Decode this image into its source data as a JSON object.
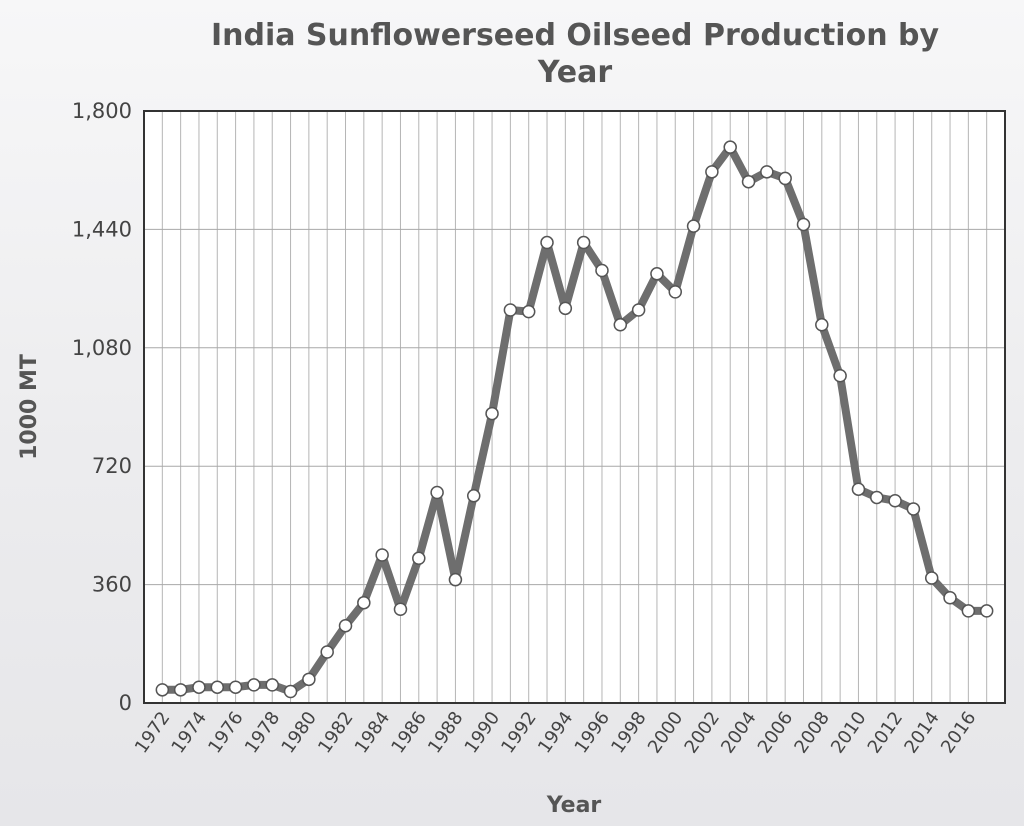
{
  "chart_data": {
    "type": "line",
    "title": "India Sunflowerseed Oilseed Production by Year",
    "title_lines": [
      "India Sunflowerseed Oilseed Production by",
      "Year"
    ],
    "xlabel": "Year",
    "ylabel": "1000 MT",
    "ylim": [
      0,
      1800
    ],
    "yticks": [
      0,
      360,
      720,
      1080,
      1440,
      1800
    ],
    "ytick_labels": [
      "0",
      "360",
      "720",
      "1,080",
      "1,440",
      "1,800"
    ],
    "xlim": [
      1971,
      2018
    ],
    "xtick_labels": [
      "1972",
      "1974",
      "1976",
      "1978",
      "1980",
      "1982",
      "1984",
      "1986",
      "1988",
      "1990",
      "1992",
      "1994",
      "1996",
      "1998",
      "2000",
      "2002",
      "2004",
      "2006",
      "2008",
      "2010",
      "2012",
      "2014",
      "2016"
    ],
    "grid": true,
    "line_color": "#6e6e6e",
    "marker_fill": "#ffffff",
    "x": [
      1972,
      1973,
      1974,
      1975,
      1976,
      1977,
      1978,
      1979,
      1980,
      1981,
      1982,
      1983,
      1984,
      1985,
      1986,
      1987,
      1988,
      1989,
      1990,
      1991,
      1992,
      1993,
      1994,
      1995,
      1996,
      1997,
      1998,
      1999,
      2000,
      2001,
      2002,
      2003,
      2004,
      2005,
      2006,
      2007,
      2008,
      2009,
      2010,
      2011,
      2012,
      2013,
      2014,
      2015,
      2016,
      2017
    ],
    "values": [
      40,
      40,
      48,
      48,
      48,
      55,
      55,
      35,
      72,
      155,
      235,
      305,
      450,
      285,
      440,
      640,
      375,
      630,
      880,
      1195,
      1190,
      1400,
      1200,
      1400,
      1315,
      1150,
      1195,
      1305,
      1250,
      1450,
      1615,
      1690,
      1585,
      1615,
      1595,
      1455,
      1150,
      995,
      650,
      625,
      615,
      590,
      380,
      320,
      280,
      280
    ]
  }
}
